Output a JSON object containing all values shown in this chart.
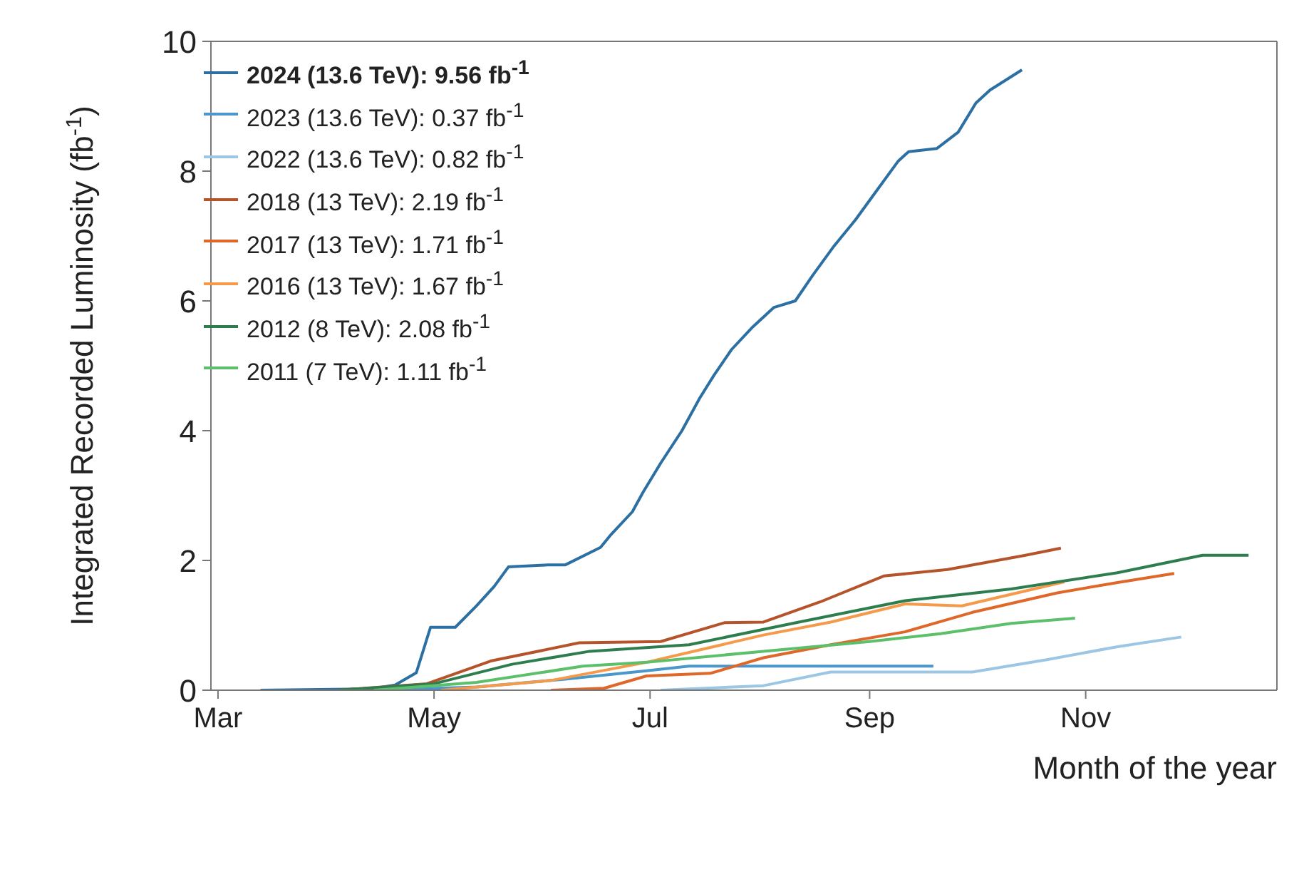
{
  "chart_data": {
    "type": "line",
    "xlabel": "Month of the year",
    "ylabel": "Integrated Recorded Luminosity (fb$^{-1}$)",
    "xlim": [
      "--02-27",
      "--12-25"
    ],
    "xticks": [
      {
        "value": "--03-01",
        "label": "Mar"
      },
      {
        "value": "--05-01",
        "label": "May"
      },
      {
        "value": "--07-01",
        "label": "Jul"
      },
      {
        "value": "--09-01",
        "label": "Sep"
      },
      {
        "value": "--11-01",
        "label": "Nov"
      }
    ],
    "ylim": [
      0,
      10
    ],
    "yticks": [
      0,
      2,
      4,
      6,
      8,
      10
    ],
    "grid": false,
    "legend": "top left",
    "marker": "none",
    "line_style": "solid",
    "series": [
      {
        "name": "2024 (13.6 TeV): 9.56 fb$^{-1}$",
        "color": "#2b6fa3",
        "x": [
          "--03-13",
          "--04-13",
          "--04-20",
          "--04-26",
          "--04-30",
          "--05-07",
          "--05-13",
          "--05-18",
          "--05-22",
          "--06-02",
          "--06-07",
          "--06-17",
          "--06-20",
          "--06-26",
          "--06-29",
          "--07-04",
          "--07-10",
          "--07-15",
          "--07-19",
          "--07-24",
          "--07-30",
          "--08-05",
          "--08-11",
          "--08-16",
          "--08-22",
          "--08-28",
          "--09-03",
          "--09-09",
          "--09-12",
          "--09-20",
          "--09-26",
          "--10-01",
          "--10-05",
          "--10-14"
        ],
        "values": [
          0,
          0.02,
          0.08,
          0.27,
          0.97,
          0.97,
          1.3,
          1.6,
          1.9,
          1.93,
          1.93,
          2.2,
          2.4,
          2.75,
          3.05,
          3.5,
          4.0,
          4.5,
          4.85,
          5.25,
          5.6,
          5.9,
          6.0,
          6.4,
          6.85,
          7.25,
          7.7,
          8.15,
          8.3,
          8.35,
          8.6,
          9.05,
          9.25,
          9.56
        ]
      },
      {
        "name": "2023 (13.6 TeV): 0.37 fb$^{-1}$",
        "color": "#4a97cc",
        "x": [
          "--04-14",
          "--05-13",
          "--06-07",
          "--06-30",
          "--07-12",
          "--09-19"
        ],
        "values": [
          0,
          0.05,
          0.17,
          0.3,
          0.37,
          0.37
        ]
      },
      {
        "name": "2022 (13.6 TeV): 0.82 fb$^{-1}$",
        "color": "#9cc6e4",
        "x": [
          "--07-04",
          "--08-02",
          "--08-21",
          "--09-30",
          "--10-21",
          "--11-10",
          "--11-28"
        ],
        "values": [
          0,
          0.07,
          0.28,
          0.28,
          0.47,
          0.67,
          0.82
        ]
      },
      {
        "name": "2018 (13 TeV): 2.19 fb$^{-1}$",
        "color": "#b5532a",
        "x": [
          "--04-04",
          "--04-29",
          "--05-17",
          "--06-11",
          "--07-04",
          "--07-22",
          "--08-02",
          "--08-18",
          "--09-05",
          "--09-23",
          "--10-15",
          "--10-25"
        ],
        "values": [
          0,
          0.1,
          0.45,
          0.73,
          0.75,
          1.04,
          1.05,
          1.36,
          1.76,
          1.86,
          2.08,
          2.19
        ]
      },
      {
        "name": "2017 (13 TeV): 1.71 fb$^{-1}$",
        "color": "#e0672a",
        "x": [
          "--06-03",
          "--06-18",
          "--06-30",
          "--07-18",
          "--08-02",
          "--08-21",
          "--09-11",
          "--09-30",
          "--10-24",
          "--11-10",
          "--11-26"
        ],
        "values": [
          0,
          0.03,
          0.22,
          0.26,
          0.5,
          0.7,
          0.9,
          1.2,
          1.5,
          1.66,
          1.8
        ]
      },
      {
        "name": "2016 (13 TeV): 1.67 fb$^{-1}$",
        "color": "#f59a4a",
        "x": [
          "--05-03",
          "--06-03",
          "--06-30",
          "--08-02",
          "--08-21",
          "--09-11",
          "--09-27",
          "--10-26"
        ],
        "values": [
          0,
          0.15,
          0.43,
          0.85,
          1.05,
          1.33,
          1.3,
          1.67
        ]
      },
      {
        "name": "2012 (8 TeV): 2.08 fb$^{-1}$",
        "color": "#2e7d4f",
        "x": [
          "--04-04",
          "--05-01",
          "--05-23",
          "--06-14",
          "--07-12",
          "--08-12",
          "--09-11",
          "--10-11",
          "--11-10",
          "--12-04",
          "--12-17"
        ],
        "values": [
          0,
          0.1,
          0.4,
          0.6,
          0.7,
          1.05,
          1.38,
          1.56,
          1.81,
          2.08,
          2.08
        ]
      },
      {
        "name": "2011 (7 TeV): 1.11 fb$^{-1}$",
        "color": "#5cbf6a",
        "x": [
          "--04-14",
          "--05-13",
          "--06-12",
          "--06-30",
          "--08-02",
          "--09-01",
          "--09-21",
          "--10-11",
          "--10-29"
        ],
        "values": [
          0,
          0.12,
          0.37,
          0.43,
          0.6,
          0.75,
          0.87,
          1.03,
          1.11
        ]
      }
    ]
  }
}
